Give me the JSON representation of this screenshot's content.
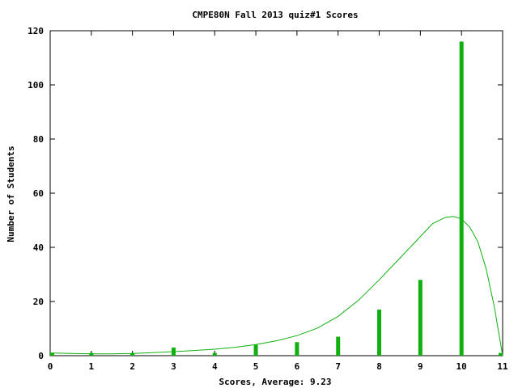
{
  "chart_data": {
    "type": "bar",
    "title": "CMPE80N Fall 2013 quiz#1 Scores",
    "xlabel": "Scores, Average: 9.23",
    "ylabel": "Number of Students",
    "xlim": [
      0,
      11
    ],
    "ylim": [
      0,
      120
    ],
    "xticks": [
      0,
      1,
      2,
      3,
      4,
      5,
      6,
      7,
      8,
      9,
      10,
      11
    ],
    "yticks": [
      0,
      20,
      40,
      60,
      80,
      100,
      120
    ],
    "grid": false,
    "legend": "none",
    "bars": {
      "x": [
        0,
        1,
        2,
        3,
        4,
        5,
        6,
        7,
        8,
        9,
        10,
        11
      ],
      "values": [
        1,
        1,
        1,
        3,
        1,
        4,
        5,
        7,
        17,
        28,
        116,
        1
      ]
    },
    "curve": {
      "type": "line",
      "x": [
        0,
        0.5,
        1,
        1.5,
        2,
        2.5,
        3,
        3.5,
        4,
        4.5,
        5,
        5.5,
        6,
        6.5,
        7,
        7.5,
        8,
        8.5,
        9,
        9.3,
        9.6,
        9.8,
        10.0,
        10.2,
        10.4,
        10.6,
        10.8,
        11
      ],
      "values": [
        1,
        0.8,
        0.7,
        0.7,
        0.8,
        1.1,
        1.5,
        1.9,
        2.4,
        3.1,
        4.1,
        5.5,
        7.4,
        10.2,
        14.5,
        20.5,
        28.0,
        36.0,
        44.0,
        48.8,
        51.0,
        51.4,
        50.5,
        47.5,
        42.0,
        32.0,
        18.0,
        0
      ]
    },
    "colors": {
      "bar": "#10b010",
      "line": "#10b010",
      "axis": "#000000"
    }
  }
}
